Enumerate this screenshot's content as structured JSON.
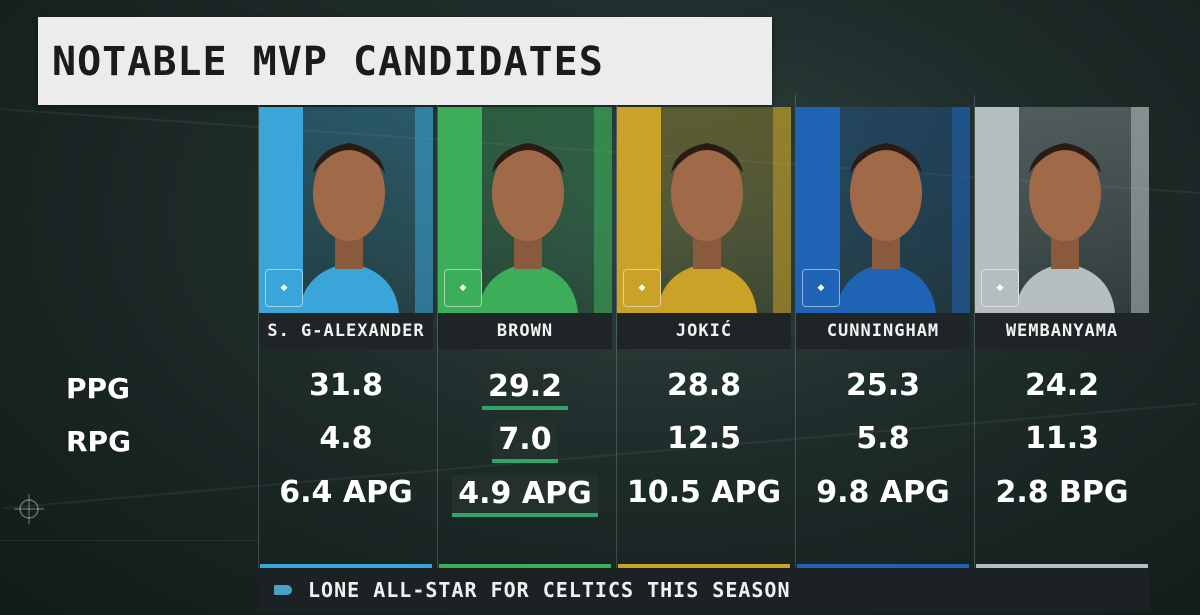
{
  "title": "NOTABLE MVP CANDIDATES",
  "row_labels": {
    "ppg": "PPG",
    "rpg": "RPG"
  },
  "players": [
    {
      "name": "S. G-ALEXANDER",
      "ppg": "31.8",
      "rpg": "4.8",
      "extra": "6.4 APG",
      "team_color": "#3aa5d8",
      "logo_icon": "thunder-logo-icon",
      "highlight": false
    },
    {
      "name": "BROWN",
      "ppg": "29.2",
      "rpg": "7.0",
      "extra": "4.9 APG",
      "team_color": "#3cae5a",
      "logo_icon": "celtics-logo-icon",
      "highlight": true
    },
    {
      "name": "JOKIĆ",
      "ppg": "28.8",
      "rpg": "12.5",
      "extra": "10.5 APG",
      "team_color": "#c9a227",
      "logo_icon": "nuggets-logo-icon",
      "highlight": false
    },
    {
      "name": "CUNNINGHAM",
      "ppg": "25.3",
      "rpg": "5.8",
      "extra": "9.8 APG",
      "team_color": "#1f63b4",
      "logo_icon": "pistons-logo-icon",
      "highlight": false
    },
    {
      "name": "WEMBANYAMA",
      "ppg": "24.2",
      "rpg": "11.3",
      "extra": "2.8 BPG",
      "team_color": "#b7bec0",
      "logo_icon": "spurs-logo-icon",
      "highlight": false
    }
  ],
  "footer": "LONE ALL-STAR FOR CELTICS THIS SEASON"
}
